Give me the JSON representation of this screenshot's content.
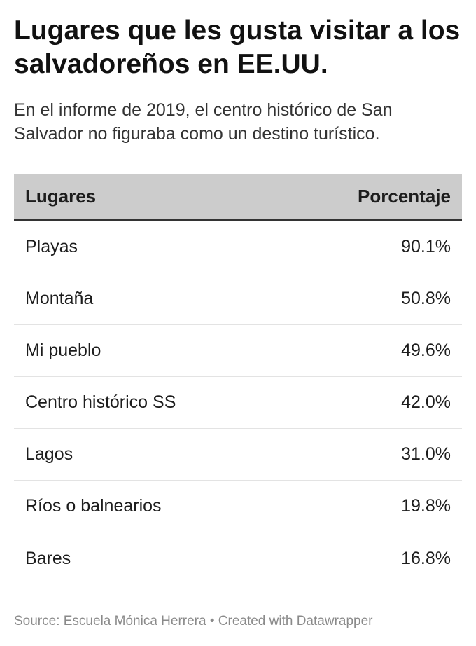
{
  "header": {
    "title": "Lugares que les gusta visitar a los salvadoreños en EE.UU.",
    "subtitle": "En el informe de 2019, el centro histórico de San Salvador no figuraba como un destino turístico."
  },
  "chart_data": {
    "type": "table",
    "columns": [
      "Lugares",
      "Porcentaje"
    ],
    "rows": [
      {
        "place": "Playas",
        "value": "90.1%"
      },
      {
        "place": "Montaña",
        "value": "50.8%"
      },
      {
        "place": "Mi pueblo",
        "value": "49.6%"
      },
      {
        "place": "Centro histórico SS",
        "value": "42.0%"
      },
      {
        "place": "Lagos",
        "value": "31.0%"
      },
      {
        "place": "Ríos o balnearios",
        "value": "19.8%"
      },
      {
        "place": "Bares",
        "value": "16.8%"
      }
    ]
  },
  "footer": {
    "source": "Source: Escuela Mónica Herrera • Created with Datawrapper"
  },
  "colors": {
    "header_bg": "#cccccc",
    "header_rule": "#333333",
    "row_divider": "#e3e3e3",
    "footer_text": "#8a8a8a"
  }
}
